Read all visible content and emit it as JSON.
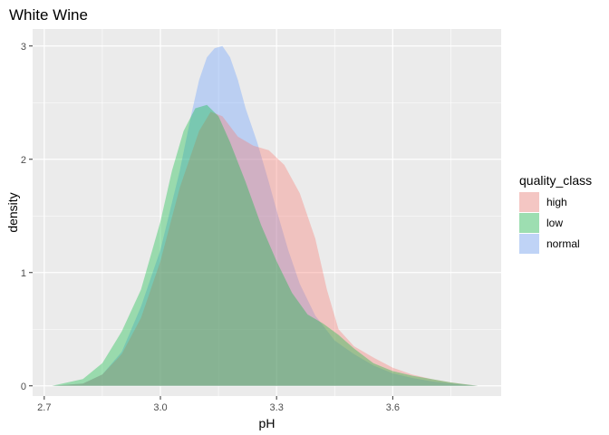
{
  "chart_data": {
    "type": "area",
    "subtype": "density",
    "title": "White Wine",
    "xlabel": "pH",
    "ylabel": "density",
    "xlim": [
      2.67,
      3.88
    ],
    "ylim": [
      -0.09,
      3.15
    ],
    "x_ticks": [
      2.7,
      3.0,
      3.3,
      3.6
    ],
    "x_tick_labels": [
      "2.7",
      "3.0",
      "3.3",
      "3.6"
    ],
    "y_ticks": [
      0,
      1,
      2,
      3
    ],
    "y_tick_labels": [
      "0",
      "1",
      "2",
      "3"
    ],
    "grid": true,
    "legend": {
      "title": "quality_class",
      "position": "right"
    },
    "series": [
      {
        "name": "normal",
        "color": "#619CFF",
        "x": [
          2.72,
          2.8,
          2.85,
          2.9,
          2.95,
          3.0,
          3.05,
          3.08,
          3.1,
          3.12,
          3.14,
          3.16,
          3.18,
          3.2,
          3.22,
          3.25,
          3.28,
          3.3,
          3.33,
          3.36,
          3.4,
          3.45,
          3.5,
          3.55,
          3.6,
          3.65,
          3.7,
          3.75,
          3.82
        ],
        "y": [
          0.0,
          0.02,
          0.1,
          0.3,
          0.7,
          1.2,
          1.9,
          2.4,
          2.7,
          2.9,
          2.98,
          3.0,
          2.9,
          2.7,
          2.45,
          2.15,
          1.8,
          1.55,
          1.2,
          0.9,
          0.62,
          0.4,
          0.28,
          0.18,
          0.11,
          0.07,
          0.04,
          0.02,
          0.0
        ]
      },
      {
        "name": "high",
        "color": "#F8766D",
        "x": [
          2.72,
          2.8,
          2.85,
          2.9,
          2.95,
          3.0,
          3.05,
          3.1,
          3.13,
          3.16,
          3.2,
          3.24,
          3.28,
          3.32,
          3.36,
          3.4,
          3.43,
          3.46,
          3.5,
          3.55,
          3.6,
          3.65,
          3.7,
          3.75,
          3.82
        ],
        "y": [
          0.0,
          0.02,
          0.1,
          0.28,
          0.6,
          1.1,
          1.75,
          2.25,
          2.42,
          2.38,
          2.2,
          2.12,
          2.08,
          1.95,
          1.7,
          1.3,
          0.85,
          0.5,
          0.35,
          0.25,
          0.16,
          0.1,
          0.06,
          0.03,
          0.0
        ]
      },
      {
        "name": "low",
        "color": "#00BA38",
        "x": [
          2.72,
          2.8,
          2.85,
          2.9,
          2.95,
          3.0,
          3.03,
          3.06,
          3.09,
          3.12,
          3.15,
          3.18,
          3.22,
          3.26,
          3.3,
          3.34,
          3.38,
          3.42,
          3.46,
          3.5,
          3.55,
          3.6,
          3.65,
          3.7,
          3.75,
          3.82
        ],
        "y": [
          0.0,
          0.06,
          0.2,
          0.48,
          0.85,
          1.45,
          1.9,
          2.25,
          2.45,
          2.48,
          2.38,
          2.15,
          1.8,
          1.42,
          1.1,
          0.82,
          0.63,
          0.55,
          0.45,
          0.33,
          0.2,
          0.13,
          0.09,
          0.06,
          0.03,
          0.0
        ]
      }
    ],
    "legend_order": [
      "high",
      "low",
      "normal"
    ]
  }
}
